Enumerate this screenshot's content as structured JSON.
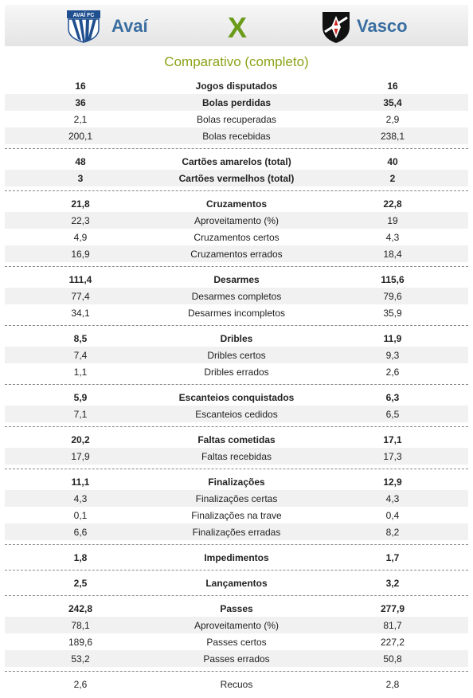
{
  "header": {
    "home_team": "Avaí",
    "away_team": "Vasco",
    "versus": "X",
    "home_logo_text": "AVAÍ FC",
    "home_logo_icon": "avai-shield-icon",
    "away_logo_icon": "vasco-shield-icon",
    "colors": {
      "team_name": "#3b6ea1",
      "versus": "#6b9b1a",
      "subtitle": "#8aa317"
    }
  },
  "subtitle": "Comparativo (completo)",
  "groups": [
    {
      "rows": [
        {
          "home": "16",
          "label": "Jogos disputados",
          "away": "16",
          "bold": true
        },
        {
          "home": "36",
          "label": "Bolas perdidas",
          "away": "35,4",
          "bold": true
        },
        {
          "home": "2,1",
          "label": "Bolas recuperadas",
          "away": "2,9",
          "bold": false
        },
        {
          "home": "200,1",
          "label": "Bolas recebidas",
          "away": "238,1",
          "bold": false
        }
      ]
    },
    {
      "rows": [
        {
          "home": "48",
          "label": "Cartões amarelos (total)",
          "away": "40",
          "bold": true
        },
        {
          "home": "3",
          "label": "Cartões vermelhos (total)",
          "away": "2",
          "bold": true
        }
      ]
    },
    {
      "rows": [
        {
          "home": "21,8",
          "label": "Cruzamentos",
          "away": "22,8",
          "bold": true
        },
        {
          "home": "22,3",
          "label": "Aproveitamento (%)",
          "away": "19",
          "bold": false
        },
        {
          "home": "4,9",
          "label": "Cruzamentos certos",
          "away": "4,3",
          "bold": false
        },
        {
          "home": "16,9",
          "label": "Cruzamentos errados",
          "away": "18,4",
          "bold": false
        }
      ]
    },
    {
      "rows": [
        {
          "home": "111,4",
          "label": "Desarmes",
          "away": "115,6",
          "bold": true
        },
        {
          "home": "77,4",
          "label": "Desarmes completos",
          "away": "79,6",
          "bold": false
        },
        {
          "home": "34,1",
          "label": "Desarmes incompletos",
          "away": "35,9",
          "bold": false
        }
      ]
    },
    {
      "rows": [
        {
          "home": "8,5",
          "label": "Dribles",
          "away": "11,9",
          "bold": true
        },
        {
          "home": "7,4",
          "label": "Dribles certos",
          "away": "9,3",
          "bold": false
        },
        {
          "home": "1,1",
          "label": "Dribles errados",
          "away": "2,6",
          "bold": false
        }
      ]
    },
    {
      "rows": [
        {
          "home": "5,9",
          "label": "Escanteios conquistados",
          "away": "6,3",
          "bold": true
        },
        {
          "home": "7,1",
          "label": "Escanteios cedidos",
          "away": "6,5",
          "bold": false
        }
      ]
    },
    {
      "rows": [
        {
          "home": "20,2",
          "label": "Faltas cometidas",
          "away": "17,1",
          "bold": true
        },
        {
          "home": "17,9",
          "label": "Faltas recebidas",
          "away": "17,3",
          "bold": false
        }
      ]
    },
    {
      "rows": [
        {
          "home": "11,1",
          "label": "Finalizações",
          "away": "12,9",
          "bold": true
        },
        {
          "home": "4,3",
          "label": "Finalizações certas",
          "away": "4,3",
          "bold": false
        },
        {
          "home": "0,1",
          "label": "Finalizações na trave",
          "away": "0,4",
          "bold": false
        },
        {
          "home": "6,6",
          "label": "Finalizações erradas",
          "away": "8,2",
          "bold": false
        }
      ]
    },
    {
      "rows": [
        {
          "home": "1,8",
          "label": "Impedimentos",
          "away": "1,7",
          "bold": true
        }
      ]
    },
    {
      "rows": [
        {
          "home": "2,5",
          "label": "Lançamentos",
          "away": "3,2",
          "bold": true
        }
      ]
    },
    {
      "rows": [
        {
          "home": "242,8",
          "label": "Passes",
          "away": "277,9",
          "bold": true
        },
        {
          "home": "78,1",
          "label": "Aproveitamento (%)",
          "away": "81,7",
          "bold": false
        },
        {
          "home": "189,6",
          "label": "Passes certos",
          "away": "227,2",
          "bold": false
        },
        {
          "home": "53,2",
          "label": "Passes errados",
          "away": "50,8",
          "bold": false
        }
      ]
    },
    {
      "rows": [
        {
          "home": "2,6",
          "label": "Recuos",
          "away": "2,8",
          "bold": false
        }
      ]
    }
  ]
}
